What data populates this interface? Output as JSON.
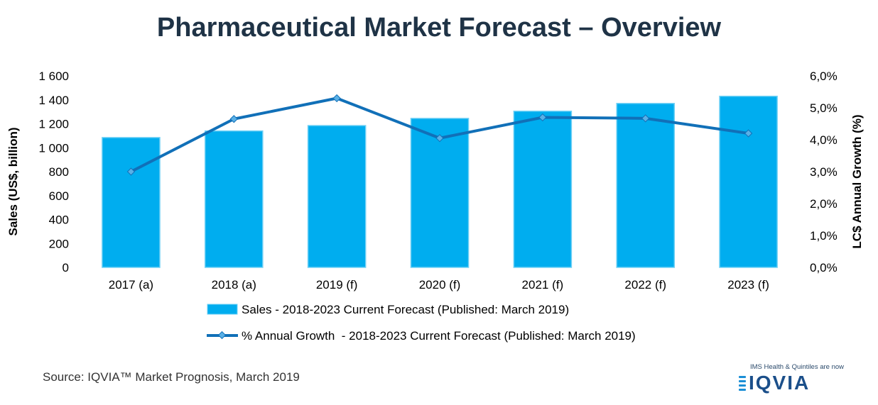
{
  "title": "Pharmaceutical Market Forecast – Overview",
  "source": "Source: IQVIA™ Market Prognosis, March 2019",
  "logo": {
    "tagline": "IMS Health & Quintiles are now",
    "wordmark": "IQVIA"
  },
  "colors": {
    "bar": "#00adef",
    "bar_border": "#6fd0f5",
    "line": "#1170b8",
    "title": "#1f3346"
  },
  "chart_data": {
    "type": "bar",
    "categories": [
      "2017 (a)",
      "2018 (a)",
      "2019 (f)",
      "2020 (f)",
      "2021 (f)",
      "2022 (f)",
      "2023 (f)"
    ],
    "series": [
      {
        "name": "Sales - 2018-2023 Current Forecast (Published: March 2019)",
        "type": "bar",
        "axis": "left",
        "values": [
          1085,
          1140,
          1185,
          1245,
          1305,
          1370,
          1430
        ]
      },
      {
        "name": "% Annual Growth  - 2018-2023 Current Forecast (Published: March 2019)",
        "type": "line",
        "axis": "right",
        "values": [
          3.0,
          4.65,
          5.3,
          4.05,
          4.7,
          4.67,
          4.2
        ]
      }
    ],
    "ylabel": "Sales (US$, billion)",
    "y2label": "LC$ Annual Growth (%)",
    "ylim": [
      0,
      1600
    ],
    "y2lim": [
      0,
      6
    ],
    "yticks": [
      "0",
      "200",
      "400",
      "600",
      "800",
      "1 000",
      "1 200",
      "1 400",
      "1 600"
    ],
    "y2ticks": [
      "0,0%",
      "1,0%",
      "2,0%",
      "3,0%",
      "4,0%",
      "5,0%",
      "6,0%"
    ],
    "grid": false,
    "legend": "bottom"
  }
}
